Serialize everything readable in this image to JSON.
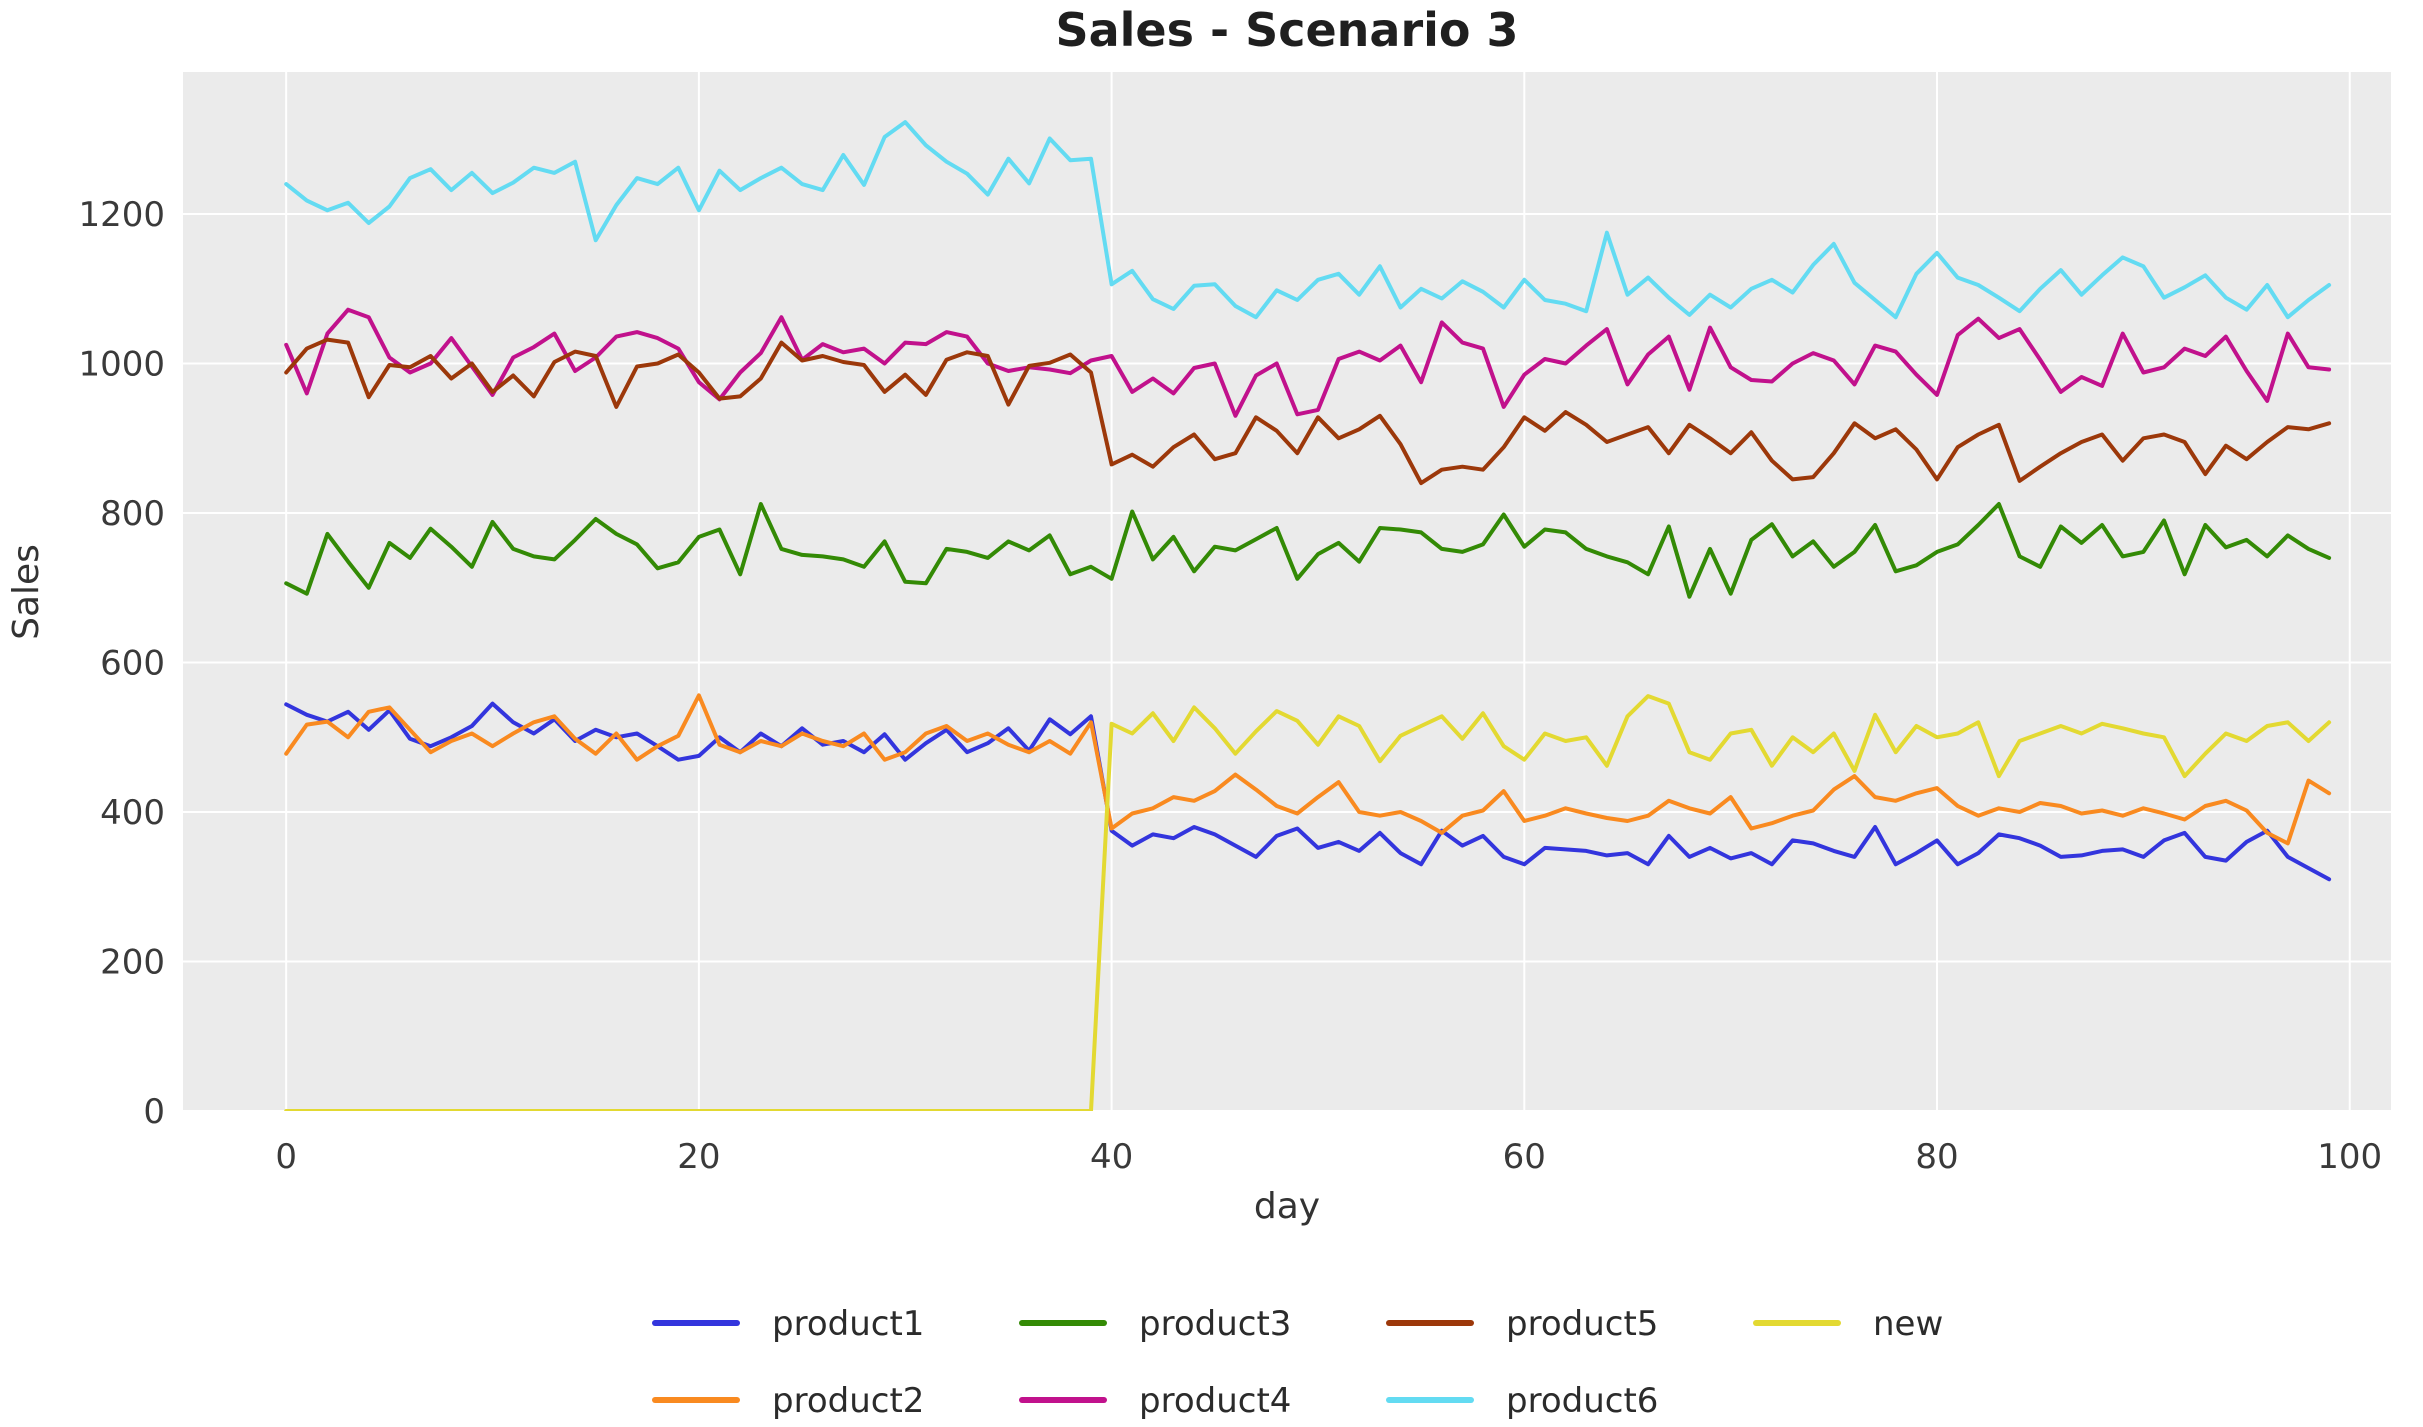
{
  "figure": {
    "plot_background": "#ebebeb",
    "grid_color": "#ffffff",
    "tick_color": "#3a3a3a",
    "title_color": "#1f1f1f"
  },
  "chart_data": {
    "type": "line",
    "title": "Sales - Scenario 3",
    "xlabel": "day",
    "ylabel": "Sales",
    "grid": true,
    "legend_position": "bottom",
    "xlim": [
      -5,
      102
    ],
    "ylim": [
      0,
      1390
    ],
    "x_ticks": [
      0,
      20,
      40,
      60,
      80,
      100
    ],
    "y_ticks": [
      0,
      200,
      400,
      600,
      800,
      1000,
      1200
    ],
    "x": [
      0,
      1,
      2,
      3,
      4,
      5,
      6,
      7,
      8,
      9,
      10,
      11,
      12,
      13,
      14,
      15,
      16,
      17,
      18,
      19,
      20,
      21,
      22,
      23,
      24,
      25,
      26,
      27,
      28,
      29,
      30,
      31,
      32,
      33,
      34,
      35,
      36,
      37,
      38,
      39,
      40,
      41,
      42,
      43,
      44,
      45,
      46,
      47,
      48,
      49,
      50,
      51,
      52,
      53,
      54,
      55,
      56,
      57,
      58,
      59,
      60,
      61,
      62,
      63,
      64,
      65,
      66,
      67,
      68,
      69,
      70,
      71,
      72,
      73,
      74,
      75,
      76,
      77,
      78,
      79,
      80,
      81,
      82,
      83,
      84,
      85,
      86,
      87,
      88,
      89,
      90,
      91,
      92,
      93,
      94,
      95,
      96,
      97,
      98,
      99
    ],
    "series": [
      {
        "name": "product1",
        "color": "#3335dd",
        "values": [
          544,
          530,
          521,
          534,
          510,
          536,
          498,
          488,
          500,
          515,
          545,
          520,
          505,
          524,
          495,
          510,
          500,
          505,
          488,
          470,
          475,
          500,
          480,
          505,
          488,
          512,
          490,
          495,
          480,
          504,
          470,
          492,
          510,
          480,
          492,
          512,
          482,
          524,
          504,
          528,
          375,
          355,
          370,
          365,
          380,
          370,
          355,
          340,
          368,
          378,
          352,
          360,
          348,
          372,
          345,
          330,
          375,
          355,
          368,
          340,
          330,
          352,
          350,
          348,
          342,
          345,
          330,
          368,
          340,
          352,
          338,
          345,
          330,
          362,
          358,
          348,
          340,
          380,
          330,
          345,
          362,
          330,
          345,
          370,
          365,
          355,
          340,
          342,
          348,
          350,
          340,
          362,
          372,
          340,
          335,
          360,
          375,
          340,
          325,
          310
        ]
      },
      {
        "name": "product2",
        "color": "#f98a20",
        "values": [
          478,
          517,
          521,
          500,
          534,
          540,
          510,
          480,
          495,
          505,
          488,
          505,
          520,
          528,
          498,
          478,
          505,
          470,
          488,
          502,
          556,
          490,
          480,
          495,
          488,
          505,
          495,
          488,
          505,
          470,
          480,
          505,
          515,
          495,
          505,
          490,
          480,
          495,
          478,
          520,
          378,
          398,
          405,
          420,
          415,
          428,
          450,
          430,
          408,
          398,
          420,
          440,
          400,
          395,
          400,
          388,
          372,
          395,
          402,
          428,
          388,
          395,
          405,
          398,
          392,
          388,
          395,
          415,
          405,
          398,
          420,
          378,
          385,
          395,
          402,
          430,
          448,
          420,
          415,
          425,
          432,
          408,
          395,
          405,
          400,
          412,
          408,
          398,
          402,
          395,
          405,
          398,
          390,
          408,
          415,
          402,
          372,
          358,
          442,
          425
        ]
      },
      {
        "name": "product3",
        "color": "#338a05",
        "values": [
          706,
          692,
          772,
          735,
          700,
          760,
          740,
          779,
          755,
          728,
          788,
          752,
          742,
          738,
          764,
          792,
          772,
          758,
          726,
          734,
          768,
          778,
          718,
          812,
          752,
          744,
          742,
          738,
          728,
          762,
          708,
          706,
          752,
          748,
          740,
          762,
          750,
          770,
          718,
          728,
          712,
          802,
          738,
          768,
          722,
          755,
          750,
          765,
          780,
          712,
          745,
          760,
          735,
          780,
          778,
          774,
          752,
          748,
          758,
          798,
          755,
          778,
          774,
          752,
          742,
          734,
          718,
          782,
          688,
          752,
          692,
          764,
          785,
          742,
          762,
          728,
          748,
          784,
          722,
          730,
          748,
          758,
          784,
          812,
          742,
          728,
          782,
          760,
          784,
          742,
          748,
          790,
          718,
          784,
          754,
          764,
          742,
          770,
          752,
          740
        ]
      },
      {
        "name": "product4",
        "color": "#c1118c",
        "values": [
          1025,
          960,
          1040,
          1072,
          1062,
          1008,
          988,
          1000,
          1034,
          996,
          958,
          1008,
          1022,
          1040,
          990,
          1008,
          1036,
          1042,
          1034,
          1020,
          975,
          952,
          988,
          1014,
          1062,
          1005,
          1026,
          1015,
          1020,
          1000,
          1028,
          1026,
          1042,
          1036,
          1000,
          990,
          995,
          992,
          987,
          1004,
          1010,
          962,
          980,
          960,
          994,
          1000,
          930,
          984,
          1000,
          932,
          938,
          1006,
          1016,
          1004,
          1024,
          975,
          1055,
          1028,
          1020,
          942,
          985,
          1006,
          1000,
          1024,
          1046,
          972,
          1012,
          1036,
          965,
          1048,
          995,
          978,
          976,
          1000,
          1014,
          1004,
          972,
          1024,
          1016,
          985,
          958,
          1038,
          1060,
          1034,
          1046,
          1005,
          962,
          982,
          970,
          1040,
          988,
          995,
          1020,
          1010,
          1036,
          990,
          950,
          1040,
          995,
          992
        ]
      },
      {
        "name": "product5",
        "color": "#9c380a",
        "values": [
          988,
          1020,
          1032,
          1028,
          955,
          998,
          995,
          1010,
          980,
          1000,
          962,
          984,
          956,
          1002,
          1016,
          1010,
          942,
          996,
          1000,
          1012,
          988,
          953,
          956,
          980,
          1028,
          1004,
          1010,
          1002,
          998,
          962,
          985,
          958,
          1005,
          1015,
          1010,
          945,
          997,
          1001,
          1012,
          988,
          865,
          878,
          862,
          888,
          905,
          872,
          880,
          928,
          910,
          880,
          928,
          900,
          912,
          930,
          892,
          840,
          858,
          862,
          858,
          888,
          928,
          910,
          935,
          918,
          895,
          905,
          915,
          880,
          918,
          900,
          880,
          908,
          870,
          845,
          848,
          880,
          920,
          900,
          912,
          885,
          845,
          888,
          905,
          918,
          843,
          862,
          880,
          895,
          905,
          870,
          900,
          905,
          895,
          852,
          890,
          872,
          895,
          915,
          912,
          920
        ]
      },
      {
        "name": "product6",
        "color": "#63dbf2",
        "values": [
          1240,
          1218,
          1205,
          1215,
          1188,
          1210,
          1248,
          1260,
          1232,
          1255,
          1228,
          1242,
          1262,
          1255,
          1270,
          1165,
          1212,
          1248,
          1240,
          1262,
          1205,
          1258,
          1232,
          1248,
          1262,
          1240,
          1232,
          1279,
          1239,
          1303,
          1323,
          1292,
          1270,
          1254,
          1226,
          1274,
          1241,
          1301,
          1272,
          1274,
          1106,
          1124,
          1086,
          1073,
          1104,
          1106,
          1077,
          1062,
          1098,
          1085,
          1112,
          1120,
          1092,
          1130,
          1075,
          1100,
          1087,
          1110,
          1096,
          1075,
          1112,
          1085,
          1080,
          1070,
          1175,
          1092,
          1115,
          1088,
          1065,
          1092,
          1075,
          1100,
          1112,
          1095,
          1132,
          1160,
          1108,
          1085,
          1062,
          1120,
          1148,
          1115,
          1105,
          1088,
          1070,
          1100,
          1125,
          1092,
          1118,
          1142,
          1130,
          1088,
          1102,
          1118,
          1088,
          1072,
          1105,
          1062,
          1085,
          1105
        ]
      },
      {
        "name": "new",
        "color": "#e3d932",
        "values": [
          0,
          0,
          0,
          0,
          0,
          0,
          0,
          0,
          0,
          0,
          0,
          0,
          0,
          0,
          0,
          0,
          0,
          0,
          0,
          0,
          0,
          0,
          0,
          0,
          0,
          0,
          0,
          0,
          0,
          0,
          0,
          0,
          0,
          0,
          0,
          0,
          0,
          0,
          0,
          0,
          518,
          505,
          532,
          495,
          540,
          512,
          478,
          508,
          535,
          522,
          490,
          528,
          515,
          468,
          502,
          515,
          528,
          498,
          532,
          488,
          470,
          505,
          495,
          500,
          462,
          528,
          555,
          545,
          480,
          470,
          505,
          510,
          462,
          500,
          480,
          505,
          455,
          530,
          480,
          515,
          500,
          505,
          520,
          448,
          495,
          505,
          515,
          505,
          518,
          512,
          505,
          500,
          448,
          478,
          505,
          495,
          515,
          520,
          495,
          520
        ]
      }
    ]
  }
}
